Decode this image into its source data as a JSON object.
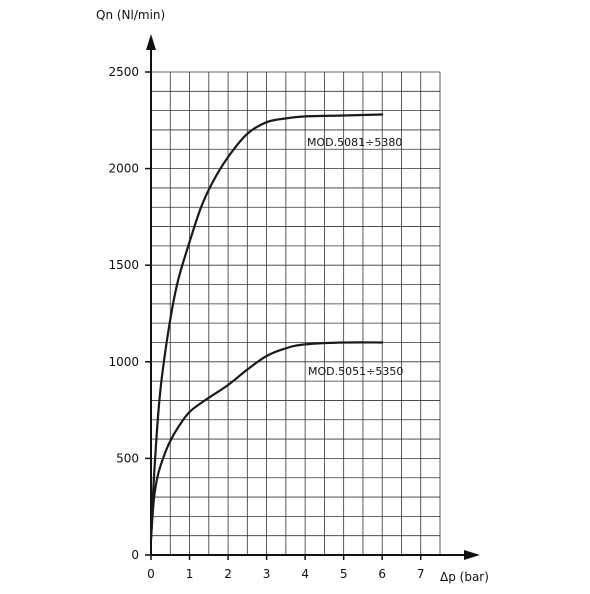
{
  "chart_data": {
    "type": "line",
    "ylabel": "Qn (Nl/min)",
    "xlabel": "Δp (bar)",
    "x_ticks": [
      0,
      1,
      2,
      3,
      4,
      5,
      6,
      7
    ],
    "y_ticks": [
      0,
      500,
      1000,
      1500,
      2000,
      2500
    ],
    "xlim": [
      0,
      7.5
    ],
    "ylim": [
      0,
      2500
    ],
    "grid": true,
    "grid_minor_step_x": 0.5,
    "grid_minor_step_y": 100,
    "series": [
      {
        "name": "MOD.5081÷5380",
        "x": [
          0,
          0.05,
          0.1,
          0.2,
          0.3,
          0.5,
          0.7,
          1.0,
          1.3,
          1.6,
          2.0,
          2.5,
          3.0,
          3.5,
          4.0,
          5.0,
          6.0
        ],
        "y": [
          80,
          300,
          480,
          760,
          950,
          1220,
          1420,
          1620,
          1800,
          1930,
          2060,
          2180,
          2240,
          2260,
          2270,
          2275,
          2280
        ]
      },
      {
        "name": "MOD.5051÷5350",
        "x": [
          0,
          0.05,
          0.1,
          0.2,
          0.35,
          0.5,
          0.7,
          1.0,
          1.4,
          2.0,
          2.5,
          3.0,
          3.5,
          4.0,
          5.0,
          6.0
        ],
        "y": [
          80,
          230,
          330,
          430,
          520,
          590,
          660,
          740,
          800,
          880,
          960,
          1030,
          1070,
          1090,
          1100,
          1100
        ]
      }
    ],
    "line_color": "#1a1a1a",
    "grid_color": "#333333"
  }
}
